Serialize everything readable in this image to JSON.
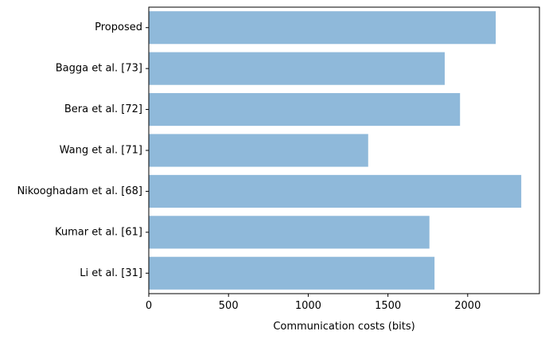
{
  "chart_data": {
    "type": "bar",
    "orientation": "horizontal",
    "categories": [
      "Proposed",
      "Bagga et al. [73]",
      "Bera et al. [72]",
      "Wang et al. [71]",
      "Nikooghadam et al. [68]",
      "Kumar et al. [61]",
      "Li et al. [31]"
    ],
    "values": [
      2176,
      1856,
      1952,
      1376,
      2336,
      1760,
      1792
    ],
    "xlabel": "Communication costs (bits)",
    "ylabel": "",
    "xlim": [
      0,
      2450
    ],
    "xticks": [
      0,
      500,
      1000,
      1500,
      2000
    ],
    "bar_color": "#8fb9da",
    "grid": false
  }
}
